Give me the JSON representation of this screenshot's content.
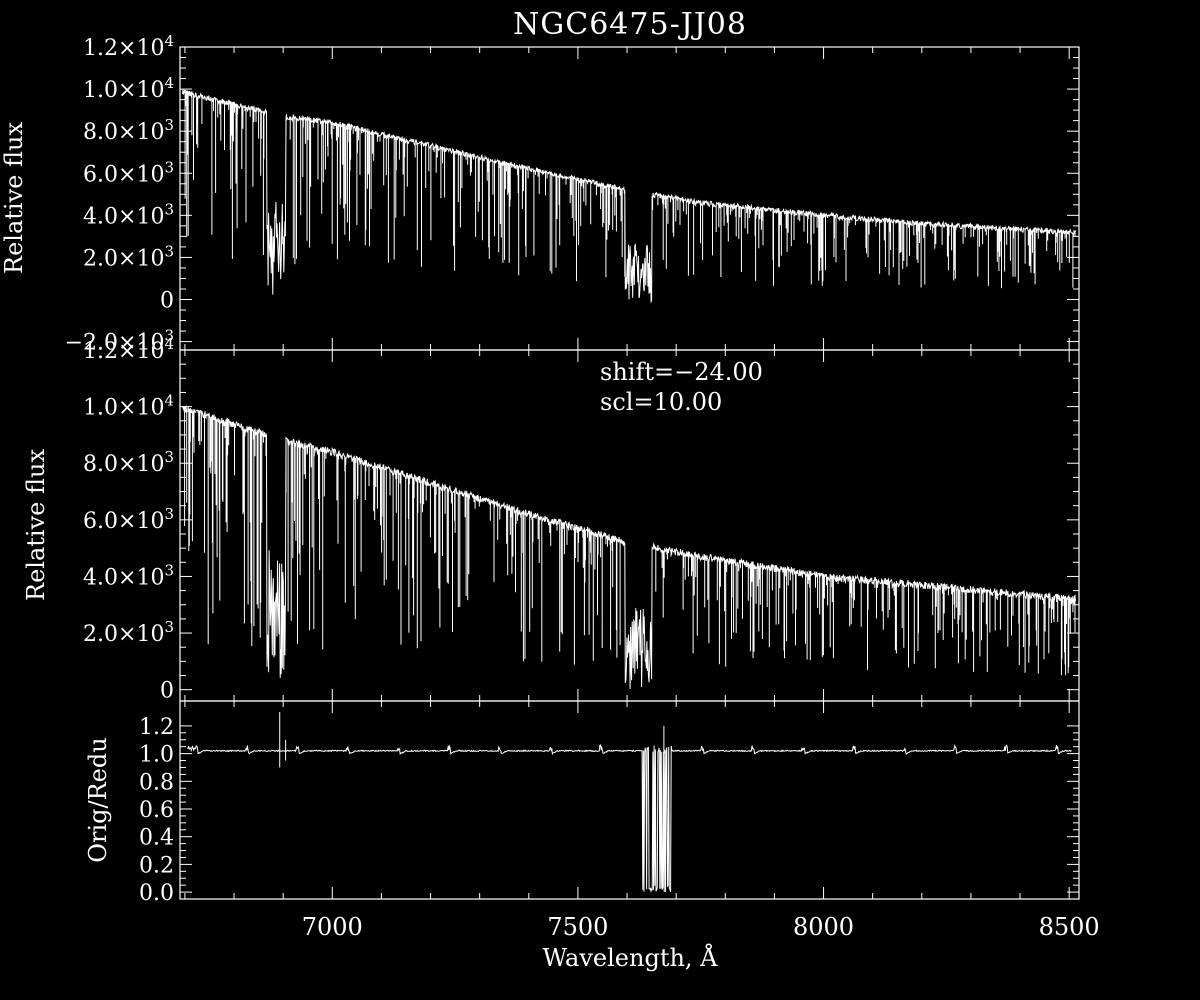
{
  "chart_data": [
    {
      "type": "line",
      "title": "NGC6475-JJ08",
      "ylabel": "Relative flux",
      "xlim": [
        6690,
        8520
      ],
      "ylim": [
        -2400,
        12000
      ],
      "yticks": [
        {
          "v": 12000,
          "m": "1.2",
          "e": "4"
        },
        {
          "v": 10000,
          "m": "1.0",
          "e": "4"
        },
        {
          "v": 8000,
          "m": "8.0",
          "e": "3"
        },
        {
          "v": 6000,
          "m": "6.0",
          "e": "3"
        },
        {
          "v": 4000,
          "m": "4.0",
          "e": "3"
        },
        {
          "v": 2000,
          "m": "2.0",
          "e": "3"
        },
        {
          "v": 0,
          "m": "0",
          "e": ""
        },
        {
          "v": -2000,
          "m": "−2.0",
          "e": "3"
        }
      ],
      "continuum": [
        [
          6690,
          9900
        ],
        [
          6900,
          8700
        ],
        [
          7000,
          8400
        ],
        [
          7200,
          7300
        ],
        [
          7400,
          6200
        ],
        [
          7600,
          5200
        ],
        [
          7750,
          4600
        ],
        [
          8000,
          4000
        ],
        [
          8200,
          3600
        ],
        [
          8500,
          3200
        ]
      ],
      "bands": [
        {
          "x0": 6867,
          "x1": 6905,
          "floor": 300
        },
        {
          "x0": 7596,
          "x1": 7650,
          "floor": 0
        }
      ],
      "grid": false
    },
    {
      "type": "line",
      "ylabel": "Relative flux",
      "annotations": [
        "shift=−24.00",
        "scl=10.00"
      ],
      "xlim": [
        6690,
        8520
      ],
      "ylim": [
        -400,
        12000
      ],
      "yticks": [
        {
          "v": 12000,
          "m": "1.2",
          "e": "4"
        },
        {
          "v": 10000,
          "m": "1.0",
          "e": "4"
        },
        {
          "v": 8000,
          "m": "8.0",
          "e": "3"
        },
        {
          "v": 6000,
          "m": "6.0",
          "e": "3"
        },
        {
          "v": 4000,
          "m": "4.0",
          "e": "3"
        },
        {
          "v": 2000,
          "m": "2.0",
          "e": "3"
        },
        {
          "v": 0,
          "m": "0",
          "e": ""
        }
      ],
      "continuum": [
        [
          6690,
          10000
        ],
        [
          6900,
          8800
        ],
        [
          7000,
          8400
        ],
        [
          7200,
          7300
        ],
        [
          7400,
          6200
        ],
        [
          7600,
          5200
        ],
        [
          7750,
          4700
        ],
        [
          8000,
          4000
        ],
        [
          8200,
          3700
        ],
        [
          8500,
          3200
        ]
      ],
      "bands": [
        {
          "x0": 6867,
          "x1": 6905,
          "floor": 300
        },
        {
          "x0": 7596,
          "x1": 7650,
          "floor": 0
        }
      ],
      "grid": false
    },
    {
      "type": "line",
      "ylabel": "Orig/Redu",
      "xlabel": "Wavelength, Å",
      "xlim": [
        6690,
        8520
      ],
      "ylim": [
        -0.05,
        1.38
      ],
      "yticks": [
        {
          "v": 1.2,
          "m": "1.2",
          "e": ""
        },
        {
          "v": 1.0,
          "m": "1.0",
          "e": ""
        },
        {
          "v": 0.8,
          "m": "0.8",
          "e": ""
        },
        {
          "v": 0.6,
          "m": "0.6",
          "e": ""
        },
        {
          "v": 0.4,
          "m": "0.4",
          "e": ""
        },
        {
          "v": 0.2,
          "m": "0.2",
          "e": ""
        },
        {
          "v": 0.0,
          "m": "0.0",
          "e": ""
        }
      ],
      "xticks": [
        7000,
        7500,
        8000,
        8500
      ],
      "baseline": 1.02,
      "bump_period": 103,
      "bands": [
        {
          "x0": 7632,
          "x1": 7690,
          "floor": 0.0,
          "top": 1.07
        }
      ],
      "grid": false
    }
  ]
}
